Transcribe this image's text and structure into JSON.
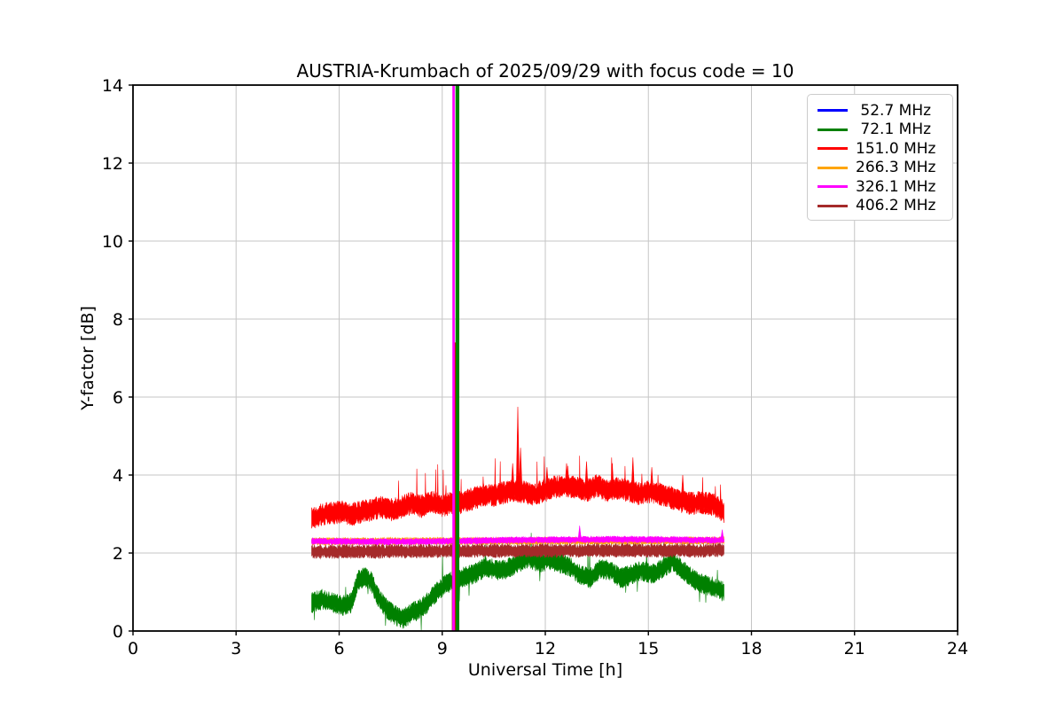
{
  "figure": {
    "background": "#ffffff"
  },
  "chart_data": {
    "type": "line",
    "title": "AUSTRIA-Krumbach of 2025/09/29 with focus code = 10",
    "xlabel": "Universal Time [h]",
    "ylabel": "Y-factor [dB]",
    "xlim": [
      0,
      24
    ],
    "ylim": [
      0,
      14
    ],
    "xticks": [
      0,
      3,
      6,
      9,
      12,
      15,
      18,
      21,
      24
    ],
    "yticks": [
      0,
      2,
      4,
      6,
      8,
      10,
      12,
      14
    ],
    "grid": true,
    "grid_color": "#c6c6c6",
    "legend_position": "upper right",
    "data_time_range_h": [
      5.2,
      17.2
    ],
    "series": [
      {
        "name": " 52.7 MHz",
        "color": "#0000ff",
        "halfwidth": 0,
        "keypoints": []
      },
      {
        "name": " 72.1 MHz",
        "color": "#008000",
        "halfwidth": 0.22,
        "up_spike_prob": 0.006,
        "down_spike_prob": 0.01,
        "keypoints": [
          [
            5.2,
            0.72
          ],
          [
            5.5,
            0.82
          ],
          [
            5.8,
            0.73
          ],
          [
            6.1,
            0.65
          ],
          [
            6.35,
            0.72
          ],
          [
            6.55,
            1.3
          ],
          [
            6.75,
            1.4
          ],
          [
            6.95,
            1.25
          ],
          [
            7.15,
            0.85
          ],
          [
            7.4,
            0.55
          ],
          [
            7.65,
            0.4
          ],
          [
            7.85,
            0.32
          ],
          [
            8.1,
            0.45
          ],
          [
            8.45,
            0.62
          ],
          [
            8.8,
            0.95
          ],
          [
            9.1,
            1.2
          ],
          [
            9.4,
            1.35
          ],
          [
            9.7,
            1.4
          ],
          [
            10.0,
            1.5
          ],
          [
            10.3,
            1.65
          ],
          [
            10.6,
            1.55
          ],
          [
            10.9,
            1.6
          ],
          [
            11.2,
            1.75
          ],
          [
            11.5,
            1.88
          ],
          [
            11.8,
            1.75
          ],
          [
            12.1,
            1.82
          ],
          [
            12.4,
            1.75
          ],
          [
            12.7,
            1.65
          ],
          [
            13.0,
            1.45
          ],
          [
            13.3,
            1.35
          ],
          [
            13.6,
            1.6
          ],
          [
            13.9,
            1.55
          ],
          [
            14.2,
            1.35
          ],
          [
            14.5,
            1.45
          ],
          [
            14.8,
            1.55
          ],
          [
            15.1,
            1.45
          ],
          [
            15.4,
            1.6
          ],
          [
            15.7,
            1.78
          ],
          [
            16.0,
            1.55
          ],
          [
            16.3,
            1.33
          ],
          [
            16.6,
            1.2
          ],
          [
            16.9,
            1.12
          ],
          [
            17.2,
            1.0
          ]
        ]
      },
      {
        "name": "151.0 MHz",
        "color": "#ff0000",
        "halfwidth": 0.25,
        "up_spike_prob": 0.012,
        "keypoints": [
          [
            5.2,
            2.9
          ],
          [
            5.6,
            3.0
          ],
          [
            6.0,
            3.05
          ],
          [
            6.4,
            3.0
          ],
          [
            6.8,
            3.08
          ],
          [
            7.2,
            3.18
          ],
          [
            7.5,
            3.1
          ],
          [
            7.8,
            3.18
          ],
          [
            8.1,
            3.28
          ],
          [
            8.4,
            3.2
          ],
          [
            8.7,
            3.3
          ],
          [
            9.0,
            3.22
          ],
          [
            9.3,
            3.28
          ],
          [
            9.6,
            3.3
          ],
          [
            9.9,
            3.4
          ],
          [
            10.2,
            3.5
          ],
          [
            10.5,
            3.48
          ],
          [
            10.8,
            3.55
          ],
          [
            11.1,
            3.6
          ],
          [
            11.4,
            3.55
          ],
          [
            11.7,
            3.5
          ],
          [
            12.0,
            3.62
          ],
          [
            12.3,
            3.7
          ],
          [
            12.6,
            3.72
          ],
          [
            12.9,
            3.68
          ],
          [
            13.2,
            3.6
          ],
          [
            13.5,
            3.72
          ],
          [
            13.8,
            3.6
          ],
          [
            14.1,
            3.65
          ],
          [
            14.4,
            3.6
          ],
          [
            14.7,
            3.52
          ],
          [
            15.0,
            3.58
          ],
          [
            15.3,
            3.52
          ],
          [
            15.6,
            3.45
          ],
          [
            15.9,
            3.32
          ],
          [
            16.2,
            3.28
          ],
          [
            16.5,
            3.3
          ],
          [
            16.8,
            3.25
          ],
          [
            17.0,
            3.2
          ],
          [
            17.2,
            3.05
          ]
        ],
        "spikes": [
          [
            11.05,
            4.3
          ],
          [
            11.2,
            5.75
          ],
          [
            11.28,
            4.7
          ],
          [
            12.05,
            4.2
          ],
          [
            12.62,
            4.3
          ],
          [
            13.2,
            4.35
          ],
          [
            13.95,
            4.3
          ],
          [
            14.55,
            4.45
          ],
          [
            15.1,
            4.2
          ],
          [
            16.0,
            4.0
          ]
        ]
      },
      {
        "name": "266.3 MHz",
        "color": "#ffa500",
        "halfwidth": 0.08,
        "keypoints": [
          [
            5.2,
            2.3
          ],
          [
            17.2,
            2.32
          ]
        ]
      },
      {
        "name": "326.1 MHz",
        "color": "#ff00ff",
        "halfwidth": 0.07,
        "keypoints": [
          [
            5.2,
            2.3
          ],
          [
            8,
            2.29
          ],
          [
            11,
            2.33
          ],
          [
            14,
            2.35
          ],
          [
            17.2,
            2.33
          ]
        ],
        "spikes": [
          [
            13.0,
            2.7
          ],
          [
            17.15,
            2.6
          ]
        ]
      },
      {
        "name": "406.2 MHz",
        "color": "#a52a2a",
        "halfwidth": 0.15,
        "keypoints": [
          [
            5.2,
            2.03
          ],
          [
            11,
            2.06
          ],
          [
            17.2,
            2.07
          ]
        ]
      }
    ],
    "events": [
      {
        "color": "#a52a2a",
        "x": 9.36,
        "width": 0.16,
        "y0": 0,
        "y1": 2.25
      },
      {
        "color": "#ff0000",
        "x": 9.36,
        "width": 0.08,
        "y0": 0,
        "y1": 7.4
      },
      {
        "color": "#ff00ff",
        "x": 9.33,
        "width": 0.07,
        "y0": 0,
        "y1": 14
      },
      {
        "color": "#008000",
        "x": 9.44,
        "width": 0.11,
        "y0": 0,
        "y1": 14
      }
    ]
  }
}
